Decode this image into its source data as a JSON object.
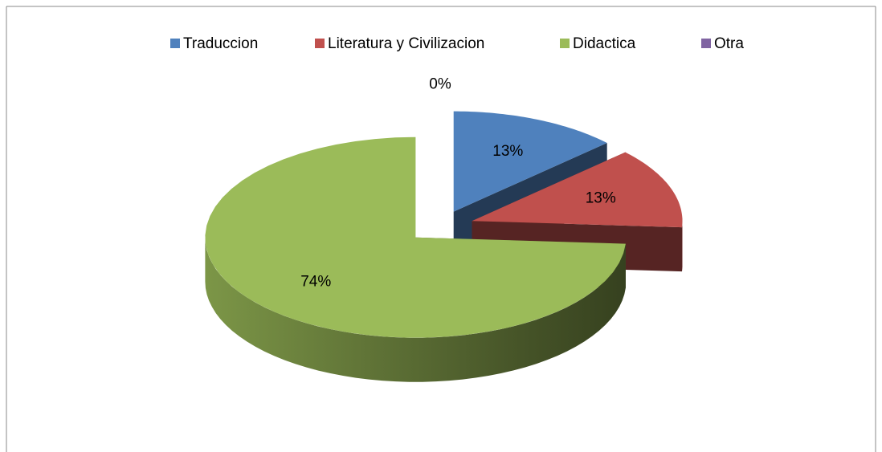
{
  "chart_data": {
    "type": "pie",
    "categories": [
      "Traduccion",
      "Literatura y Civilizacion",
      "Didactica",
      "Otra"
    ],
    "values": [
      13,
      13,
      74,
      0
    ],
    "value_labels": [
      "13%",
      "13%",
      "74%",
      "0%"
    ],
    "colors": [
      "#4f81bd",
      "#c0504d",
      "#9bbb59",
      "#8064a2"
    ],
    "legend": "top"
  }
}
